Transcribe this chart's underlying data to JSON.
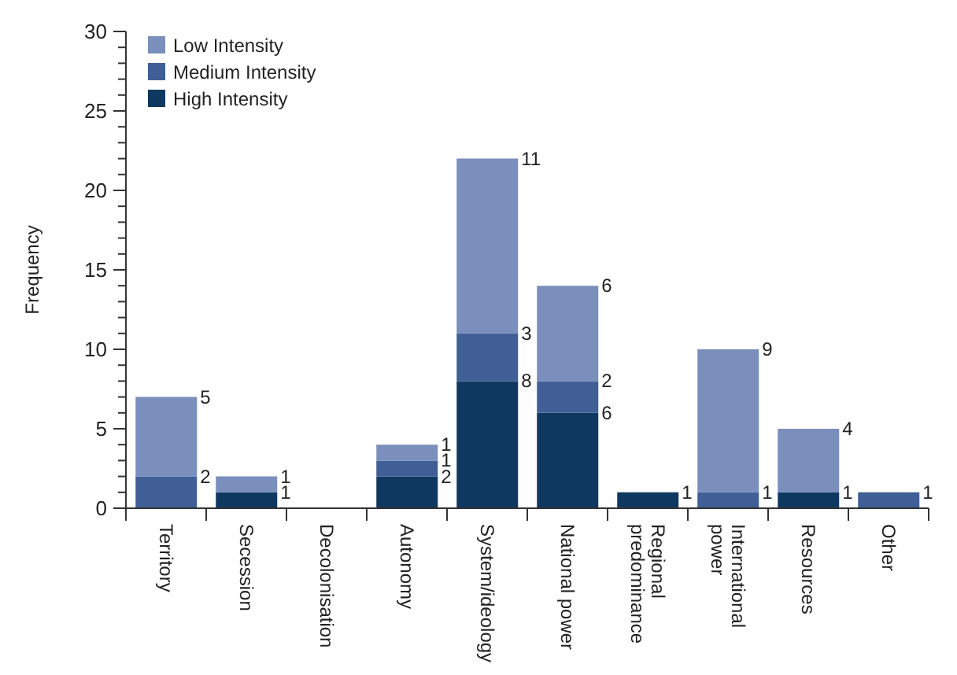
{
  "chart_data": {
    "type": "bar",
    "stacked": true,
    "ylabel": "Frequency",
    "categories": [
      "Territory",
      "Secession",
      "Decolonisation",
      "Autonomy",
      "System/ideology",
      "National power",
      "Regional predominance",
      "International power",
      "Resources",
      "Other"
    ],
    "series": [
      {
        "name": "High Intensity",
        "color": "#0f3861",
        "values": [
          0,
          1,
          0,
          2,
          8,
          6,
          1,
          0,
          1,
          0
        ],
        "value_labels": [
          null,
          "1",
          null,
          "2",
          "8",
          "6",
          "1",
          null,
          "1",
          null
        ]
      },
      {
        "name": "Medium Intensity",
        "color": "#3f5f96",
        "values": [
          2,
          0,
          0,
          1,
          3,
          2,
          0,
          1,
          0,
          1
        ],
        "value_labels": [
          "2",
          null,
          null,
          "1",
          "3",
          "2",
          null,
          "1",
          null,
          "1"
        ]
      },
      {
        "name": "Low Intensity",
        "color": "#7b8fbd",
        "values": [
          5,
          1,
          0,
          1,
          11,
          6,
          0,
          9,
          4,
          0
        ],
        "value_labels": [
          "5",
          "1",
          null,
          "1",
          "11",
          "6",
          null,
          "9",
          "4",
          null
        ]
      }
    ],
    "ylim": [
      0,
      30
    ],
    "yticks": [
      0,
      {
        "value": 1,
        "label": null
      },
      {
        "value": 2,
        "label": null
      },
      {
        "value": 3,
        "label": null
      },
      {
        "value": 4,
        "label": null
      },
      5,
      {
        "value": 6,
        "label": null
      },
      {
        "value": 7,
        "label": null
      },
      {
        "value": 8,
        "label": null
      },
      {
        "value": 9,
        "label": null
      },
      10,
      {
        "value": 11,
        "label": null
      },
      {
        "value": 12,
        "label": null
      },
      {
        "value": 13,
        "label": null
      },
      {
        "value": 14,
        "label": null
      },
      15,
      {
        "value": 16,
        "label": null
      },
      {
        "value": 17,
        "label": null
      },
      {
        "value": 18,
        "label": null
      },
      {
        "value": 19,
        "label": null
      },
      20,
      {
        "value": 21,
        "label": null
      },
      {
        "value": 22,
        "label": null
      },
      {
        "value": 23,
        "label": null
      },
      {
        "value": 24,
        "label": null
      },
      25,
      {
        "value": 26,
        "label": null
      },
      {
        "value": 27,
        "label": null
      },
      {
        "value": 28,
        "label": null
      },
      {
        "value": 29,
        "label": null
      },
      30
    ],
    "grid": false,
    "legend": "top left"
  }
}
